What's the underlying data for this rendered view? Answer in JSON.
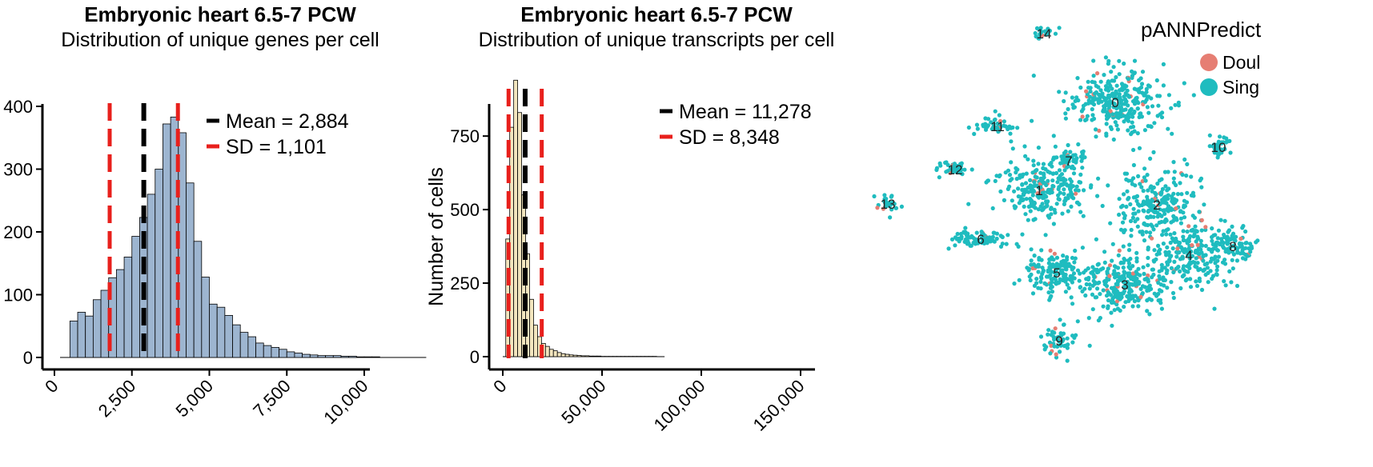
{
  "chart_data": [
    {
      "type": "bar",
      "title": "Embryonic heart 6.5-7 PCW",
      "subtitle": "Distribution of unique genes per cell",
      "xlabel": "",
      "ylabel": "",
      "xlim": [
        0,
        10000
      ],
      "ylim": [
        0,
        400
      ],
      "xticks": [
        "0",
        "2,500",
        "5,000",
        "7,500",
        "10,000"
      ],
      "yticks": [
        "0",
        "100",
        "200",
        "300",
        "400"
      ],
      "bin_start": 500,
      "bin_width": 250,
      "values": [
        58,
        72,
        66,
        92,
        107,
        127,
        140,
        160,
        193,
        223,
        260,
        300,
        372,
        383,
        358,
        278,
        185,
        128,
        85,
        80,
        67,
        52,
        40,
        33,
        23,
        19,
        16,
        13,
        9,
        7,
        5,
        4,
        3,
        3,
        3,
        2,
        2,
        1,
        1,
        1,
        0,
        0,
        0,
        0,
        0,
        0
      ],
      "fill": "#9db5d0",
      "mean": 2884,
      "sd": 1101,
      "legend": [
        "Mean = 2,884",
        "SD = 1,101"
      ],
      "legend_colors": [
        "#000000",
        "#e8201c"
      ]
    },
    {
      "type": "bar",
      "title": "Embryonic heart 6.5-7 PCW",
      "subtitle": "Distribution of unique transcripts per cell",
      "xlabel": "",
      "ylabel": "Number of cells",
      "xlim": [
        0,
        150000
      ],
      "ylim": [
        0,
        900
      ],
      "xticks": [
        "0",
        "50,000",
        "100,000",
        "150,000"
      ],
      "yticks": [
        "0",
        "250",
        "500",
        "750"
      ],
      "bin_start": 1500,
      "bin_width": 2000,
      "values": [
        400,
        780,
        940,
        830,
        550,
        350,
        195,
        107,
        68,
        45,
        35,
        25,
        20,
        14,
        10,
        8,
        6,
        5,
        4,
        3,
        3,
        2,
        2,
        2,
        1,
        1,
        1,
        1,
        1,
        1,
        1,
        1,
        1,
        1,
        1,
        1,
        1,
        1,
        0,
        0
      ],
      "fill": "#f3e6bf",
      "mean": 11278,
      "sd": 8348,
      "legend": [
        "Mean = 11,278",
        "SD = 8,348"
      ],
      "legend_colors": [
        "#000000",
        "#e8201c"
      ]
    },
    {
      "type": "scatter",
      "title": "",
      "legend_title": "pANNPredict",
      "legend": [
        "Doul",
        "Sing"
      ],
      "legend_colors": [
        "#e67e73",
        "#1fbcbf"
      ],
      "cluster_labels": [
        "0",
        "1",
        "2",
        "3",
        "4",
        "5",
        "6",
        "7",
        "8",
        "9",
        "10",
        "11",
        "12",
        "13",
        "14"
      ],
      "clusters": [
        {
          "label": "0",
          "x": 1393,
          "y": 127,
          "sx": 60,
          "sy": 42,
          "n": 300
        },
        {
          "label": "1",
          "x": 1298,
          "y": 237,
          "sx": 62,
          "sy": 36,
          "n": 260
        },
        {
          "label": "2",
          "x": 1445,
          "y": 255,
          "sx": 52,
          "sy": 40,
          "n": 230
        },
        {
          "label": "3",
          "x": 1405,
          "y": 355,
          "sx": 56,
          "sy": 38,
          "n": 250
        },
        {
          "label": "4",
          "x": 1485,
          "y": 318,
          "sx": 48,
          "sy": 40,
          "n": 230
        },
        {
          "label": "5",
          "x": 1320,
          "y": 340,
          "sx": 40,
          "sy": 28,
          "n": 150
        },
        {
          "label": "6",
          "x": 1225,
          "y": 298,
          "sx": 38,
          "sy": 12,
          "n": 90
        },
        {
          "label": "7",
          "x": 1335,
          "y": 200,
          "sx": 22,
          "sy": 14,
          "n": 50
        },
        {
          "label": "8",
          "x": 1540,
          "y": 307,
          "sx": 25,
          "sy": 22,
          "n": 80
        },
        {
          "label": "9",
          "x": 1323,
          "y": 425,
          "sx": 20,
          "sy": 18,
          "n": 50
        },
        {
          "label": "10",
          "x": 1522,
          "y": 183,
          "sx": 12,
          "sy": 16,
          "n": 40
        },
        {
          "label": "11",
          "x": 1246,
          "y": 157,
          "sx": 28,
          "sy": 12,
          "n": 45
        },
        {
          "label": "12",
          "x": 1193,
          "y": 211,
          "sx": 20,
          "sy": 10,
          "n": 40
        },
        {
          "label": "13",
          "x": 1109,
          "y": 254,
          "sx": 14,
          "sy": 10,
          "n": 30
        },
        {
          "label": "14",
          "x": 1304,
          "y": 41,
          "sx": 16,
          "sy": 6,
          "n": 22
        }
      ],
      "doublet_share": 0.04
    }
  ]
}
